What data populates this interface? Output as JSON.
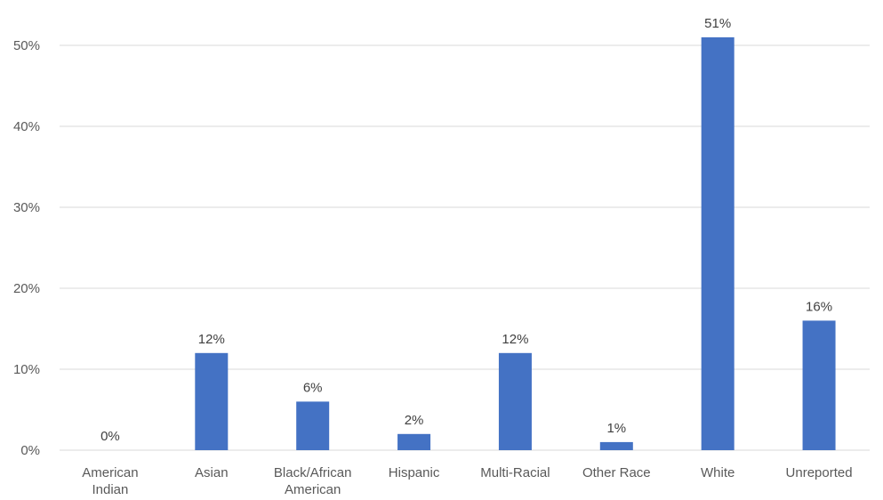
{
  "chart_data": {
    "type": "bar",
    "title": "",
    "xlabel": "",
    "ylabel": "",
    "categories": [
      [
        "American",
        "Indian"
      ],
      [
        "Asian"
      ],
      [
        "Black/African",
        "American"
      ],
      [
        "Hispanic"
      ],
      [
        "Multi-Racial"
      ],
      [
        "Other Race"
      ],
      [
        "White"
      ],
      [
        "Unreported"
      ]
    ],
    "values": [
      0,
      12,
      6,
      2,
      12,
      1,
      51,
      16
    ],
    "data_labels": [
      "0%",
      "12%",
      "6%",
      "2%",
      "12%",
      "1%",
      "51%",
      "16%"
    ],
    "ylim": [
      0,
      50
    ],
    "yticks": [
      0,
      10,
      20,
      30,
      40,
      50
    ],
    "ytick_labels": [
      "0%",
      "10%",
      "20%",
      "30%",
      "40%",
      "50%"
    ],
    "grid": true,
    "legend": "none",
    "bar_color": "#4472c4"
  }
}
